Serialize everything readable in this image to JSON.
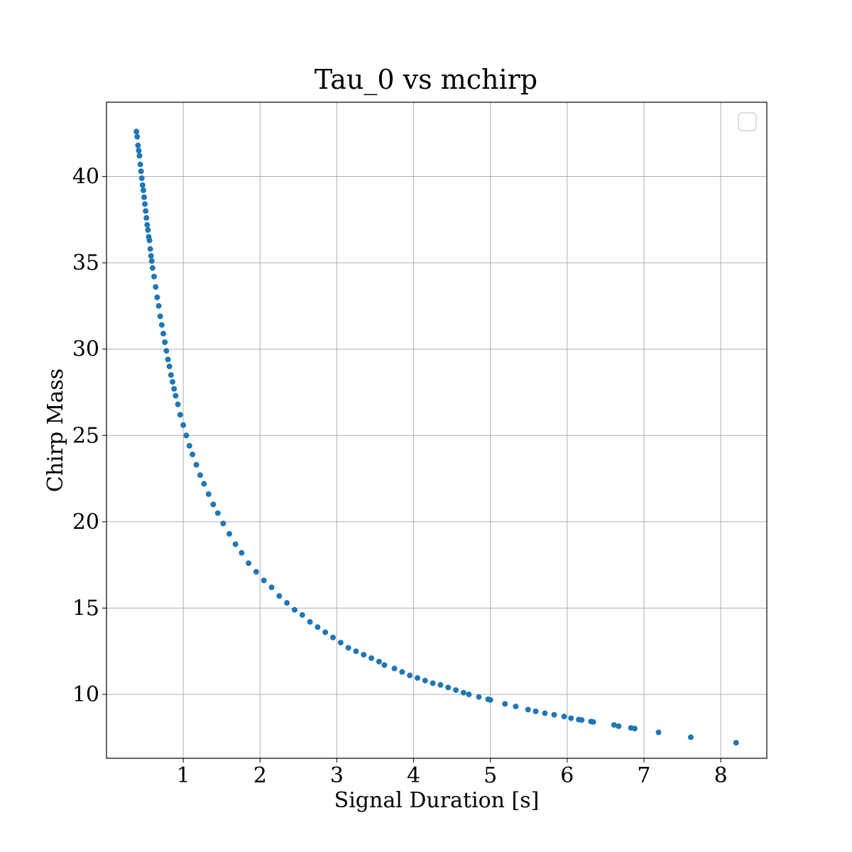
{
  "chart_data": {
    "type": "scatter",
    "title": "Tau_0 vs mchirp",
    "xlabel": "Signal Duration [s]",
    "ylabel": "Chirp Mass",
    "xlim": [
      0.0,
      8.6
    ],
    "ylim": [
      6.3,
      44.3
    ],
    "xticks": [
      1,
      2,
      3,
      4,
      5,
      6,
      7,
      8
    ],
    "xtick_labels": [
      "1",
      "2",
      "3",
      "4",
      "5",
      "6",
      "7",
      "8"
    ],
    "yticks": [
      10,
      15,
      20,
      25,
      30,
      35,
      40
    ],
    "ytick_labels": [
      "10",
      "15",
      "20",
      "25",
      "30",
      "35",
      "40"
    ],
    "grid": true,
    "legend": "top-right (empty)",
    "marker_color": "#1f77b4",
    "series": [
      {
        "points": [
          [
            0.39,
            42.6
          ],
          [
            0.4,
            42.3
          ],
          [
            0.41,
            41.8
          ],
          [
            0.42,
            41.5
          ],
          [
            0.43,
            41.2
          ],
          [
            0.44,
            40.7
          ],
          [
            0.45,
            40.3
          ],
          [
            0.46,
            39.9
          ],
          [
            0.47,
            39.5
          ],
          [
            0.48,
            39.2
          ],
          [
            0.49,
            38.8
          ],
          [
            0.5,
            38.4
          ],
          [
            0.51,
            38.0
          ],
          [
            0.52,
            37.6
          ],
          [
            0.53,
            37.2
          ],
          [
            0.54,
            36.9
          ],
          [
            0.55,
            36.5
          ],
          [
            0.56,
            36.3
          ],
          [
            0.57,
            35.8
          ],
          [
            0.58,
            35.4
          ],
          [
            0.59,
            35.1
          ],
          [
            0.6,
            34.7
          ],
          [
            0.62,
            34.2
          ],
          [
            0.64,
            33.6
          ],
          [
            0.66,
            33.0
          ],
          [
            0.68,
            32.5
          ],
          [
            0.7,
            31.9
          ],
          [
            0.72,
            31.4
          ],
          [
            0.74,
            30.9
          ],
          [
            0.76,
            30.4
          ],
          [
            0.78,
            29.9
          ],
          [
            0.8,
            29.4
          ],
          [
            0.82,
            29.0
          ],
          [
            0.84,
            28.5
          ],
          [
            0.86,
            28.1
          ],
          [
            0.88,
            27.7
          ],
          [
            0.9,
            27.3
          ],
          [
            0.93,
            26.8
          ],
          [
            0.96,
            26.2
          ],
          [
            1.0,
            25.6
          ],
          [
            1.04,
            25.0
          ],
          [
            1.08,
            24.4
          ],
          [
            1.12,
            23.9
          ],
          [
            1.17,
            23.3
          ],
          [
            1.22,
            22.7
          ],
          [
            1.27,
            22.2
          ],
          [
            1.33,
            21.6
          ],
          [
            1.39,
            21.0
          ],
          [
            1.45,
            20.5
          ],
          [
            1.52,
            19.9
          ],
          [
            1.6,
            19.3
          ],
          [
            1.68,
            18.7
          ],
          [
            1.76,
            18.2
          ],
          [
            1.85,
            17.6
          ],
          [
            1.95,
            17.1
          ],
          [
            2.05,
            16.6
          ],
          [
            2.15,
            16.2
          ],
          [
            2.25,
            15.7
          ],
          [
            2.35,
            15.3
          ],
          [
            2.45,
            14.9
          ],
          [
            2.55,
            14.6
          ],
          [
            2.65,
            14.2
          ],
          [
            2.75,
            13.9
          ],
          [
            2.85,
            13.6
          ],
          [
            2.95,
            13.3
          ],
          [
            3.05,
            13.0
          ],
          [
            3.15,
            12.7
          ],
          [
            3.25,
            12.5
          ],
          [
            3.35,
            12.3
          ],
          [
            3.45,
            12.1
          ],
          [
            3.55,
            11.9
          ],
          [
            3.62,
            11.7
          ],
          [
            3.75,
            11.5
          ],
          [
            3.85,
            11.3
          ],
          [
            3.95,
            11.1
          ],
          [
            4.05,
            10.95
          ],
          [
            4.15,
            10.8
          ],
          [
            4.25,
            10.65
          ],
          [
            4.35,
            10.55
          ],
          [
            4.45,
            10.4
          ],
          [
            4.55,
            10.25
          ],
          [
            4.65,
            10.1
          ],
          [
            4.72,
            10.0
          ],
          [
            4.85,
            9.85
          ],
          [
            4.97,
            9.72
          ],
          [
            5.0,
            9.68
          ],
          [
            5.19,
            9.45
          ],
          [
            5.33,
            9.3
          ],
          [
            5.49,
            9.12
          ],
          [
            5.59,
            9.02
          ],
          [
            5.71,
            8.91
          ],
          [
            5.83,
            8.82
          ],
          [
            5.96,
            8.72
          ],
          [
            6.05,
            8.62
          ],
          [
            6.15,
            8.54
          ],
          [
            6.19,
            8.52
          ],
          [
            6.31,
            8.43
          ],
          [
            6.34,
            8.4
          ],
          [
            6.61,
            8.23
          ],
          [
            6.67,
            8.16
          ],
          [
            6.83,
            8.06
          ],
          [
            6.88,
            8.02
          ],
          [
            7.19,
            7.8
          ],
          [
            7.61,
            7.52
          ],
          [
            8.2,
            7.2
          ]
        ]
      }
    ]
  }
}
